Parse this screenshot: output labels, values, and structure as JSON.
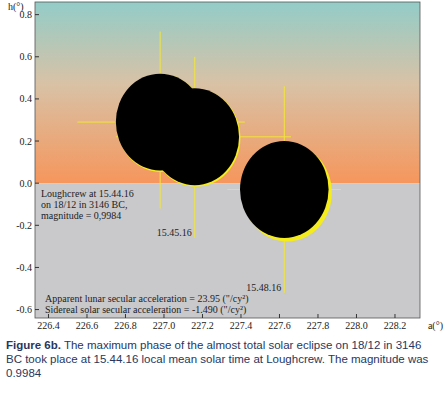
{
  "chart_data": {
    "type": "scatter",
    "x_label": "a(°)",
    "y_label": "h(°)",
    "xlim": [
      226.33,
      228.33
    ],
    "ylim": [
      -0.64,
      0.86
    ],
    "xticks": [
      226.4,
      226.6,
      226.8,
      {
        "value": 227,
        "label": "227.0"
      },
      227.2,
      227.4,
      227.6,
      227.8,
      {
        "value": 228,
        "label": "228.0"
      },
      228.2
    ],
    "yticks": [
      -0.6,
      -0.4,
      -0.2,
      {
        "value": 0,
        "label": "0.0"
      },
      0.2,
      0.4,
      0.6,
      0.8
    ],
    "horizon": 0,
    "series": [
      {
        "color": "#f5ec1e",
        "x": [
          226.985,
          227.165,
          227.64
        ],
        "values": [
          0.285,
          0.215,
          -0.045
        ],
        "radius": [
          0.232,
          0.232,
          0.232
        ]
      },
      {
        "color": "#000000",
        "x": [
          226.98,
          227.16,
          227.625
        ],
        "values": [
          0.29,
          0.22,
          -0.03
        ],
        "radius": [
          0.23,
          0.23,
          0.23
        ]
      }
    ],
    "crosshairs": [
      {
        "a_range": [
          226.55,
          227.42
        ],
        "h_range": [
          -0.12,
          0.72
        ]
      },
      {
        "a_range": [
          226.75,
          227.66
        ],
        "h_range": [
          -0.26,
          0.6
        ],
        "label": "15.45.16"
      },
      {
        "a_range": [
          227.33,
          227.92
        ],
        "h_range": [
          -0.52,
          0.46
        ],
        "label": "15.48.16"
      }
    ],
    "note_lines": [
      "Loughcrew at 15.44.16",
      "on 18/12 in 3146 BC,",
      "magnitude = 0,9984"
    ],
    "footer_lines": [
      "Apparent lunar secular acceleration = 23.95 (\"/cy²)",
      "Sidereal solar secular acceleration  = -1.490 (\"/cy²)"
    ],
    "caption": {
      "label": "Figure 6b.",
      "text": " The maximum phase of the almost total solar eclipse on 18/12 in 3146 BC took place at 15.44.16 local mean solar time at Loughcrew. The magnitude was 0.9984"
    }
  }
}
